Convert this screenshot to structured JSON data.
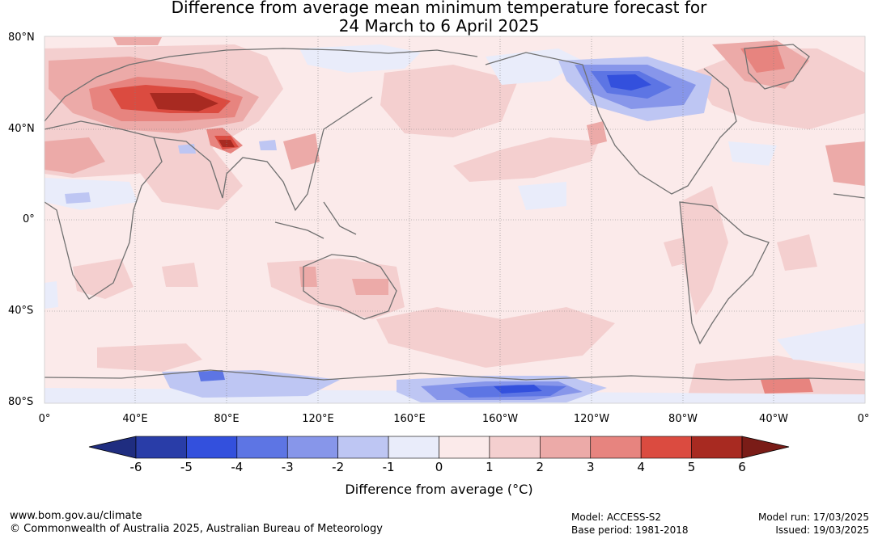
{
  "title_line1": "Difference from average mean minimum temperature forecast for",
  "title_line2": "24 March to 6 April 2025",
  "lat_labels": [
    "80°N",
    "40°N",
    "0°",
    "40°S",
    "80°S"
  ],
  "lon_labels": [
    "0°",
    "40°E",
    "80°E",
    "120°E",
    "160°E",
    "160°W",
    "120°W",
    "80°W",
    "40°W",
    "0°"
  ],
  "colorbar": {
    "ticks": [
      "-6",
      "-5",
      "-4",
      "-3",
      "-2",
      "-1",
      "0",
      "1",
      "2",
      "3",
      "4",
      "5",
      "6"
    ],
    "colors": [
      "#293da8",
      "#3350dd",
      "#5d75e4",
      "#8796ea",
      "#bec6f3",
      "#e9ecfa",
      "#fbeaea",
      "#f4cfcf",
      "#ecaaa8",
      "#e7847f",
      "#db4b40",
      "#a82a21"
    ],
    "under_color": "#1f2d80",
    "over_color": "#7a1c17",
    "label": "Difference from average (°C)"
  },
  "colors": {
    "ocean_base": "#fbeaea",
    "coast": "#707070",
    "grid": "#808080"
  },
  "footer": {
    "left1": "www.bom.gov.au/climate",
    "left2": "© Commonwealth of Australia 2025, Australian Bureau of Meteorology",
    "model": "Model: ACCESS-S2",
    "base_period": "Base period: 1981-2018",
    "model_run": "Model run: 17/03/2025",
    "issued": "Issued: 19/03/2025"
  }
}
